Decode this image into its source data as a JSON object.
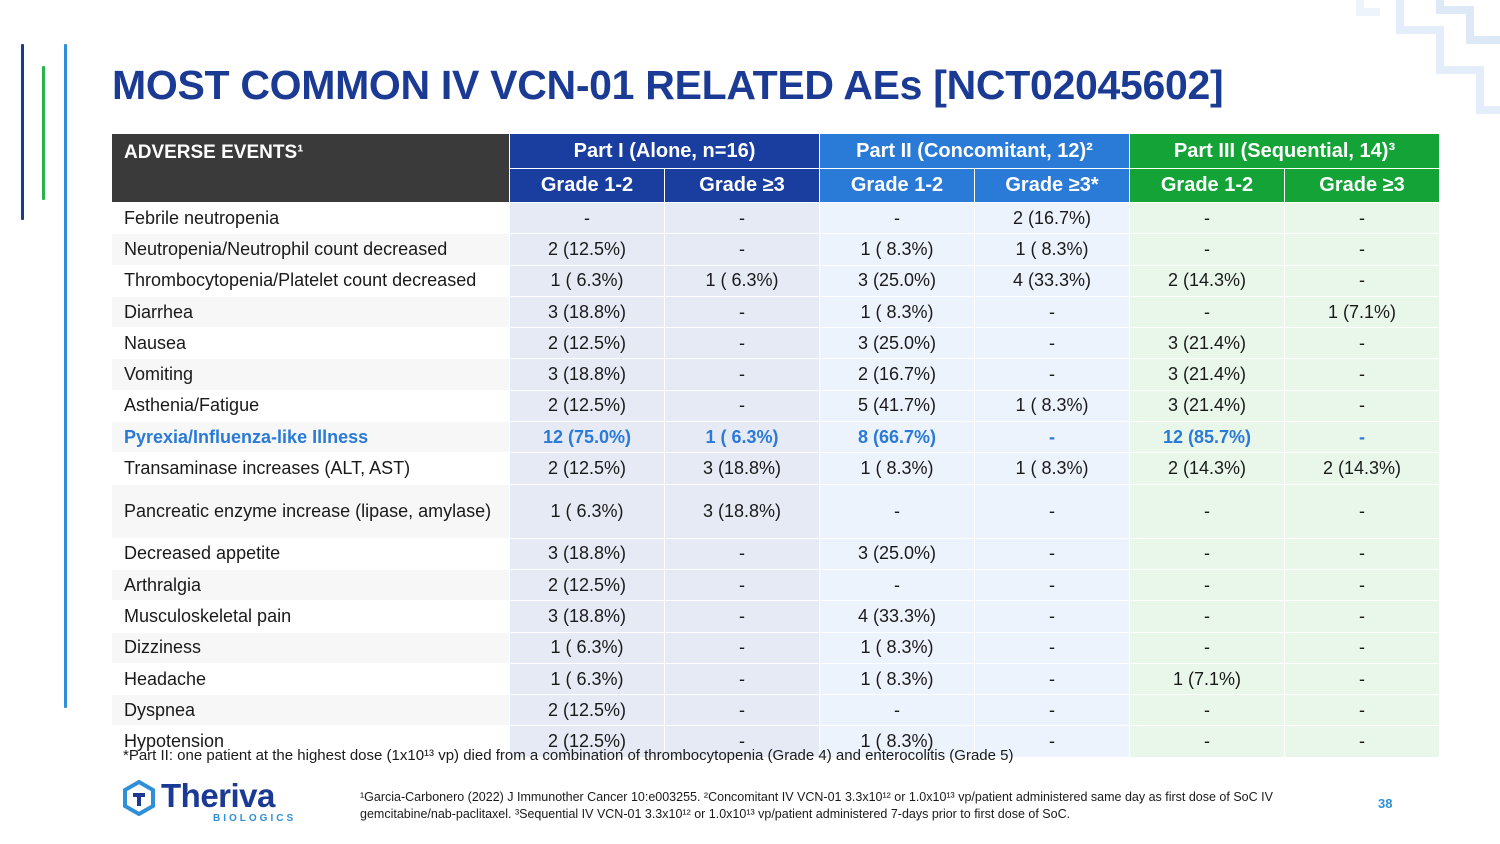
{
  "title": "MOST COMMON IV VCN-01 RELATED AEs [NCT02045602]",
  "table": {
    "events_header": "ADVERSE EVENTS¹",
    "parts": [
      "Part I (Alone, n=16)",
      "Part II (Concomitant, 12)²",
      "Part III (Sequential, 14)³"
    ],
    "grades": [
      "Grade 1-2",
      "Grade ≥3",
      "Grade 1-2",
      "Grade ≥3*",
      "Grade 1-2",
      "Grade ≥3"
    ],
    "rows": [
      {
        "event": "Febrile neutropenia",
        "values": [
          "-",
          "-",
          "-",
          "2 (16.7%)",
          "-",
          "-"
        ]
      },
      {
        "event": "Neutropenia/Neutrophil count decreased",
        "values": [
          "2 (12.5%)",
          "-",
          "1 ( 8.3%)",
          "1 ( 8.3%)",
          "-",
          "-"
        ]
      },
      {
        "event": "Thrombocytopenia/Platelet count decreased",
        "values": [
          "1 ( 6.3%)",
          "1 ( 6.3%)",
          "3 (25.0%)",
          "4 (33.3%)",
          "2 (14.3%)",
          "-"
        ]
      },
      {
        "event": "Diarrhea",
        "values": [
          "3 (18.8%)",
          "-",
          "1 ( 8.3%)",
          "-",
          "-",
          "1 (7.1%)"
        ]
      },
      {
        "event": "Nausea",
        "values": [
          "2 (12.5%)",
          "-",
          "3 (25.0%)",
          "-",
          "3 (21.4%)",
          "-"
        ]
      },
      {
        "event": "Vomiting",
        "values": [
          "3 (18.8%)",
          "-",
          "2 (16.7%)",
          "-",
          "3 (21.4%)",
          "-"
        ]
      },
      {
        "event": "Asthenia/Fatigue",
        "values": [
          "2 (12.5%)",
          "-",
          "5 (41.7%)",
          "1 ( 8.3%)",
          "3 (21.4%)",
          "-"
        ]
      },
      {
        "event": "Pyrexia/Influenza-like Illness",
        "values": [
          "12 (75.0%)",
          "1 ( 6.3%)",
          "8 (66.7%)",
          "-",
          "12 (85.7%)",
          "-"
        ],
        "highlight": true
      },
      {
        "event": "Transaminase increases (ALT, AST)",
        "values": [
          "2 (12.5%)",
          "3 (18.8%)",
          "1 ( 8.3%)",
          "1 ( 8.3%)",
          "2 (14.3%)",
          "2 (14.3%)"
        ]
      },
      {
        "event": "Pancreatic enzyme increase (lipase, amylase)",
        "values": [
          "1 ( 6.3%)",
          "3 (18.8%)",
          "-",
          "-",
          "-",
          "-"
        ],
        "tall": true
      },
      {
        "event": "Decreased appetite",
        "values": [
          "3 (18.8%)",
          "-",
          "3 (25.0%)",
          "-",
          "-",
          "-"
        ]
      },
      {
        "event": "Arthralgia",
        "values": [
          "2 (12.5%)",
          "-",
          "-",
          "-",
          "-",
          "-"
        ]
      },
      {
        "event": "Musculoskeletal pain",
        "values": [
          "3 (18.8%)",
          "-",
          "4 (33.3%)",
          "-",
          "-",
          "-"
        ]
      },
      {
        "event": "Dizziness",
        "values": [
          "1 ( 6.3%)",
          "-",
          "1 ( 8.3%)",
          "-",
          "-",
          "-"
        ]
      },
      {
        "event": "Headache",
        "values": [
          "1 ( 6.3%)",
          "-",
          "1 ( 8.3%)",
          "-",
          "1 (7.1%)",
          "-"
        ]
      },
      {
        "event": "Dyspnea",
        "values": [
          "2 (12.5%)",
          "-",
          "-",
          "-",
          "-",
          "-"
        ]
      },
      {
        "event": "Hypotension",
        "values": [
          "2 (12.5%)",
          "-",
          "1 ( 8.3%)",
          "-",
          "-",
          "-"
        ]
      }
    ]
  },
  "footnote_star": "*Part II: one patient at the highest dose (1x10¹³ vp) died from a combination of thrombocytopenia (Grade 4) and enterocolitis (Grade 5)",
  "references": "¹Garcia-Carbonero (2022) J Immunother Cancer 10:e003255. ²Concomitant IV VCN-01 3.3x10¹² or 1.0x10¹³ vp/patient administered same day as first dose of SoC IV gemcitabine/nab-paclitaxel. ³Sequential IV VCN-01 3.3x10¹² or 1.0x10¹³ vp/patient administered 7-days prior to first dose of SoC.",
  "logo": {
    "name": "Theriva",
    "sub": "BIOLOGICS"
  },
  "page_number": "38",
  "colors": {
    "title": "#1b3a93",
    "part1": "#1a3ea0",
    "part2": "#2a7ad8",
    "part3": "#13a336",
    "header_dark": "#3a3a3a",
    "highlight": "#2a7ad8"
  }
}
